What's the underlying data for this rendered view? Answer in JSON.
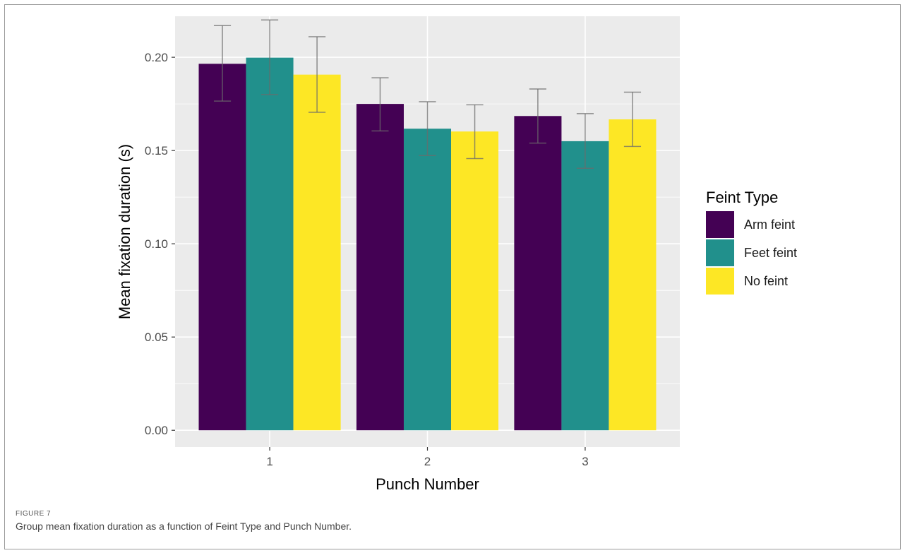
{
  "figure": {
    "label": "FIGURE 7",
    "caption": "Group mean fixation duration as a function of Feint Type and Punch Number."
  },
  "chart_data": {
    "type": "bar",
    "xlabel": "Punch Number",
    "ylabel": "Mean fixation duration (s)",
    "categories": [
      "1",
      "2",
      "3"
    ],
    "ylim": [
      -0.009,
      0.222
    ],
    "yticks": [
      0.0,
      0.05,
      0.1,
      0.15,
      0.2
    ],
    "ytick_labels": [
      "0.00",
      "0.05",
      "0.10",
      "0.15",
      "0.20"
    ],
    "grid": true,
    "legend": {
      "title": "Feint Type",
      "position": "right"
    },
    "series": [
      {
        "name": "Arm feint",
        "color": "#440154",
        "values": [
          0.1965,
          0.175,
          0.1685
        ],
        "errors": [
          [
            0.1765,
            0.217
          ],
          [
            0.1605,
            0.189
          ],
          [
            0.154,
            0.183
          ]
        ]
      },
      {
        "name": "Feet feint",
        "color": "#21908C",
        "values": [
          0.1998,
          0.1617,
          0.155
        ],
        "errors": [
          [
            0.18,
            0.22
          ],
          [
            0.1473,
            0.1762
          ],
          [
            0.1405,
            0.1698
          ]
        ]
      },
      {
        "name": "No feint",
        "color": "#FDE725",
        "values": [
          0.1907,
          0.1602,
          0.1667
        ],
        "errors": [
          [
            0.1705,
            0.211
          ],
          [
            0.1457,
            0.1745
          ],
          [
            0.1522,
            0.1813
          ]
        ]
      }
    ]
  }
}
